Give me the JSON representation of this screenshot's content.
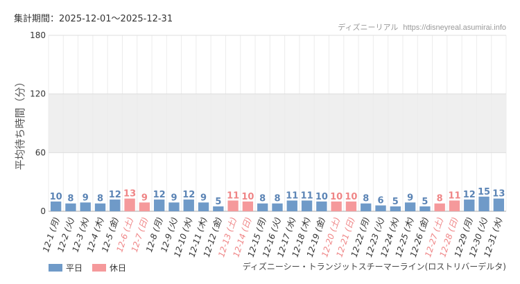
{
  "header": {
    "period_label": "集計期間：2025-12-01～2025-12-31",
    "site_name": "ディズニーリアル",
    "site_url": "https://disneyreal.asumirai.info"
  },
  "legend": {
    "weekday": "平日",
    "holiday": "休日"
  },
  "footer": {
    "attraction": "ディズニーシー・トランジットスチーマーライン(ロストリバーデルタ)"
  },
  "colors": {
    "weekday": "#6f9ac8",
    "holiday": "#f5999b",
    "weekday_label": "#5b84b5",
    "holiday_label": "#ef8586",
    "band": "#efefef",
    "grid": "#dddddd"
  },
  "chart_data": {
    "type": "bar",
    "ylabel": "平均待ち時間（分）",
    "ylim": [
      0,
      180
    ],
    "yticks": [
      0,
      60,
      120,
      180
    ],
    "shaded_band": [
      60,
      120
    ],
    "categories": [
      "12-1 (月)",
      "12-2 (火)",
      "12-3 (水)",
      "12-4 (木)",
      "12-5 (金)",
      "12-6 (土)",
      "12-7 (日)",
      "12-8 (月)",
      "12-9 (火)",
      "12-10 (水)",
      "12-11 (木)",
      "12-12 (金)",
      "12-13 (土)",
      "12-14 (日)",
      "12-15 (月)",
      "12-16 (火)",
      "12-17 (水)",
      "12-18 (木)",
      "12-19 (金)",
      "12-20 (土)",
      "12-21 (日)",
      "12-22 (月)",
      "12-23 (火)",
      "12-24 (水)",
      "12-25 (木)",
      "12-26 (金)",
      "12-27 (土)",
      "12-28 (日)",
      "12-29 (月)",
      "12-30 (火)",
      "12-31 (水)"
    ],
    "values": [
      10,
      8,
      9,
      8,
      12,
      13,
      9,
      12,
      9,
      12,
      9,
      5,
      11,
      10,
      8,
      8,
      11,
      11,
      10,
      10,
      10,
      8,
      6,
      5,
      9,
      5,
      8,
      11,
      12,
      15,
      13
    ],
    "holiday": [
      false,
      false,
      false,
      false,
      false,
      true,
      true,
      false,
      false,
      false,
      false,
      false,
      true,
      true,
      false,
      false,
      false,
      false,
      false,
      true,
      true,
      false,
      false,
      false,
      false,
      false,
      true,
      true,
      false,
      false,
      false
    ],
    "legend_position": "bottom-left"
  }
}
